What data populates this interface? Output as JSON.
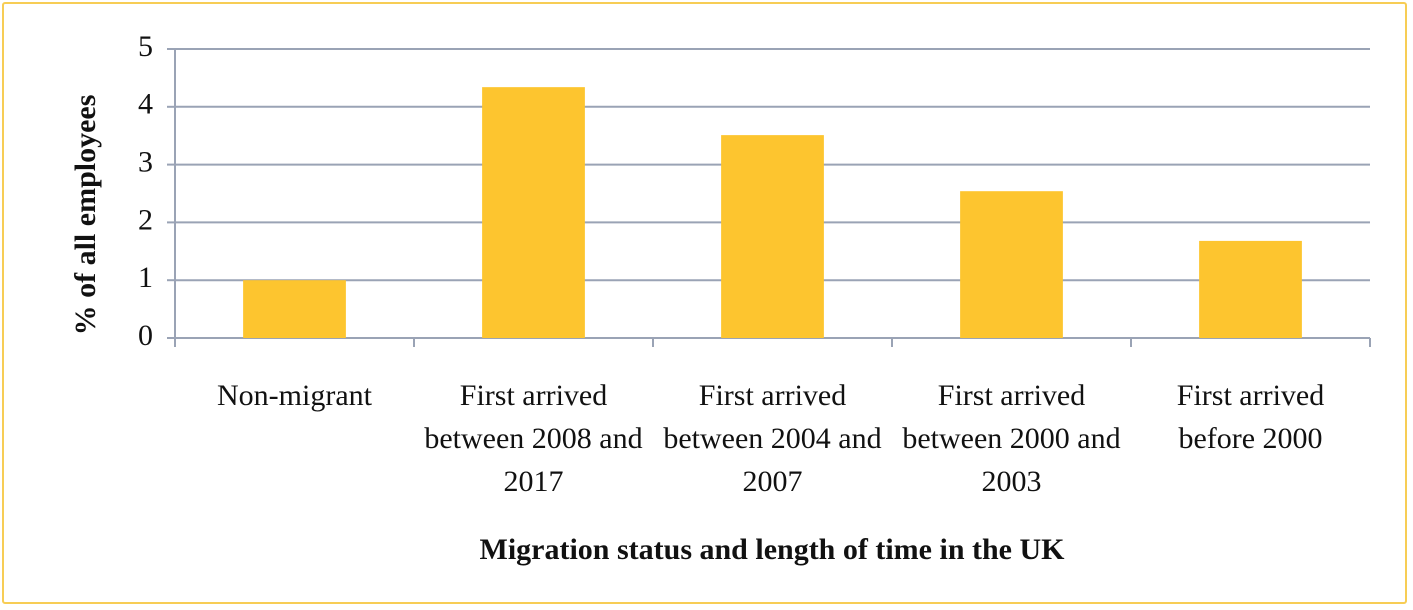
{
  "chart_data": {
    "type": "bar",
    "x_label": "Migration status and length of time in the UK",
    "y_label": "% of all employees",
    "categories": [
      "Non-migrant",
      "First arrived between 2008 and 2017",
      "First arrived between 2004 and 2007",
      "First arrived between 2000 and 2003",
      "First arrived before 2000"
    ],
    "values": [
      1.0,
      4.34,
      3.51,
      2.54,
      1.68
    ],
    "color": "#fdc52f",
    "ylim": [
      0,
      5
    ],
    "yticks": [
      0,
      1,
      2,
      3,
      4,
      5
    ],
    "grid": true
  }
}
